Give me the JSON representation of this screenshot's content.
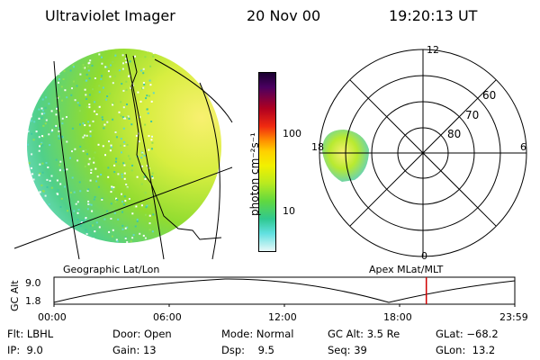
{
  "header": {
    "title": "Ultraviolet Imager",
    "date": "20 Nov 00",
    "time": "19:20:13 UT"
  },
  "colorbar": {
    "label": "photon cm⁻²s⁻¹",
    "ticks": [
      "100",
      "10"
    ]
  },
  "polar": {
    "mlt_labels": [
      "12",
      "18",
      "6",
      "0"
    ],
    "lat_labels": [
      "60",
      "70",
      "80"
    ]
  },
  "panel_labels": {
    "left": "Geographic Lat/Lon",
    "right": "Apex MLat/MLT"
  },
  "altitude_plot": {
    "axis_label": "GC Alt",
    "y_ticks": [
      "9.0",
      "1.8"
    ],
    "x_ticks": [
      "00:00",
      "06:00",
      "12:00",
      "18:00",
      "23:59"
    ],
    "y_range": [
      1.8,
      9.0
    ],
    "current_time_fraction": 0.808
  },
  "params": {
    "flt_label": "Flt:",
    "flt_value": "LBHL",
    "ip_label": "IP:",
    "ip_value": "9.0",
    "door_label": "Door:",
    "door_value": "Open",
    "gain_label": "Gain:",
    "gain_value": "13",
    "mode_label": "Mode:",
    "mode_value": "Normal",
    "dsp_label": "Dsp:",
    "dsp_value": "9.5",
    "gcalt_label": "GC Alt:",
    "gcalt_value": "3.5 Re",
    "seq_label": "Seq:",
    "seq_value": "39",
    "glat_label": "GLat:",
    "glat_value": "−68.2",
    "glon_label": "GLon:",
    "glon_value": "13.2"
  },
  "colors": {
    "marker": "#d00000",
    "line": "#000000"
  }
}
